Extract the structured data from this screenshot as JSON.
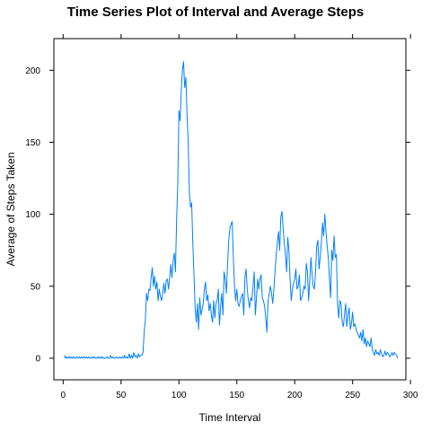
{
  "chart_data": {
    "type": "line",
    "title": "Time Series Plot of Interval and Average Steps",
    "xlabel": "Time Interval",
    "ylabel": "Average of Steps Taken",
    "xlim": [
      -8,
      296
    ],
    "ylim": [
      -15,
      222
    ],
    "xticks": [
      "0",
      "50",
      "100",
      "150",
      "200",
      "250",
      "300"
    ],
    "yticks": [
      "0",
      "50",
      "100",
      "150",
      "200"
    ],
    "grid": false,
    "line_color": "#0080FF",
    "x_start": 1,
    "y": [
      2,
      0,
      1,
      0,
      1,
      0,
      1,
      0,
      1,
      0,
      0,
      1,
      0,
      1,
      0,
      1,
      0,
      1,
      0,
      1,
      0,
      1,
      0,
      0,
      1,
      0,
      1,
      0,
      0,
      1,
      0,
      1,
      0,
      1,
      0,
      0,
      0,
      1,
      0,
      0,
      2,
      0,
      1,
      0,
      0,
      1,
      0,
      0,
      1,
      0,
      1,
      0,
      2,
      0,
      1,
      0,
      3,
      0,
      2,
      0,
      4,
      1,
      2,
      0,
      3,
      1,
      2,
      2,
      4,
      18,
      27,
      45,
      40,
      48,
      47,
      56,
      63,
      50,
      57,
      48,
      53,
      40,
      48,
      43,
      40,
      45,
      52,
      45,
      54,
      55,
      48,
      56,
      65,
      56,
      68,
      73,
      60,
      96,
      120,
      172,
      165,
      185,
      200,
      206,
      188,
      195,
      170,
      150,
      115,
      105,
      108,
      80,
      58,
      35,
      25,
      38,
      20,
      42,
      30,
      34,
      38,
      48,
      53,
      40,
      44,
      33,
      38,
      30,
      25,
      40,
      28,
      38,
      40,
      48,
      23,
      36,
      45,
      30,
      60,
      55,
      45,
      65,
      82,
      90,
      93,
      95,
      70,
      50,
      40,
      48,
      38,
      36,
      40,
      43,
      45,
      30,
      56,
      62,
      48,
      40,
      35,
      42,
      40,
      50,
      60,
      30,
      42,
      55,
      48,
      55,
      58,
      42,
      40,
      36,
      28,
      18,
      40,
      45,
      50,
      45,
      38,
      48,
      60,
      72,
      80,
      88,
      75,
      98,
      102,
      90,
      80,
      72,
      60,
      84,
      75,
      55,
      40,
      48,
      52,
      55,
      62,
      48,
      50,
      58,
      40,
      42,
      45,
      50,
      48,
      66,
      60,
      40,
      54,
      70,
      58,
      50,
      48,
      60,
      78,
      82,
      62,
      70,
      80,
      94,
      85,
      100,
      88,
      78,
      70,
      55,
      42,
      75,
      68,
      85,
      70,
      72,
      38,
      28,
      40,
      38,
      25,
      22,
      30,
      38,
      22,
      30,
      35,
      20,
      24,
      32,
      22,
      24,
      20,
      18,
      16,
      14,
      18,
      12,
      20,
      10,
      14,
      8,
      12,
      10,
      8,
      14,
      6,
      4,
      2,
      6,
      3,
      4,
      2,
      6,
      3,
      1,
      2,
      5,
      2,
      4,
      3,
      1,
      2,
      4,
      2,
      4,
      3,
      2,
      0
    ]
  }
}
